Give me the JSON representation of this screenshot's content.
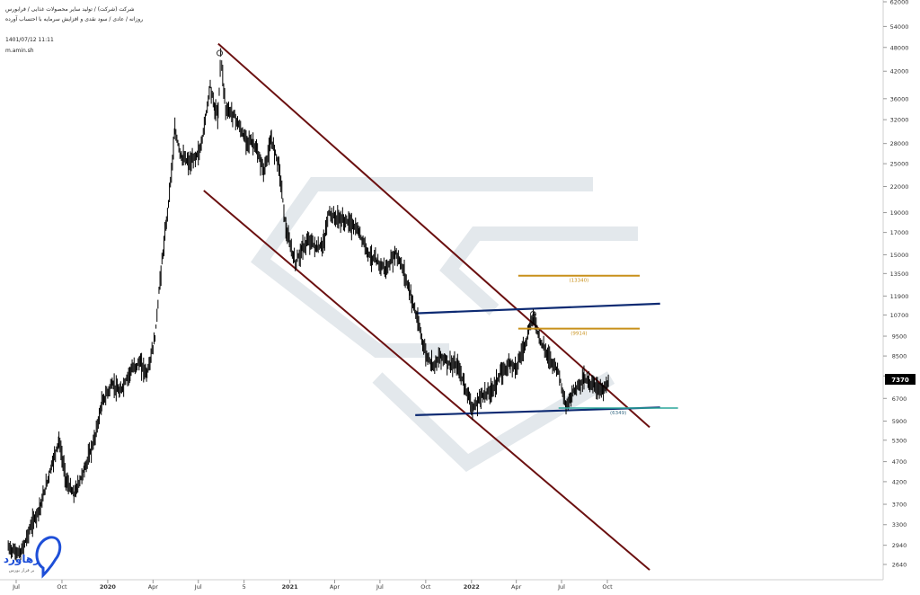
{
  "header": {
    "line1": "شرکت (شرکت) / تولید سایر محصولات غذایی / فرابورس",
    "line2": "روزانه / عادی / سود نقدی و افزایش سرمایه با احتساب آورده",
    "timestamp": "1401/07/12 11:11",
    "author": "m.amin.sh"
  },
  "last_price_label": "7370",
  "logo": {
    "name": "رهاورد",
    "tagline": "بر فراز بورس"
  },
  "colors": {
    "channel": "#6b1010",
    "support_resistance": "#0d2a72",
    "fib_level": "#c8901a",
    "support_level": "#2aa59a",
    "candles": "#000000",
    "last_price_bg": "#000000"
  },
  "chart_data": {
    "type": "line",
    "title": "",
    "y_scale": "log",
    "ylim": [
      2460,
      62000
    ],
    "y_ticks": [
      62000,
      54000,
      48000,
      42000,
      36000,
      32000,
      28000,
      25000,
      22000,
      19000,
      17000,
      15000,
      13500,
      11900,
      10700,
      9500,
      8500,
      7600,
      6700,
      5900,
      5300,
      4700,
      4200,
      3700,
      3300,
      2940,
      2640
    ],
    "x_ticks": [
      {
        "label": "Jul",
        "date": "2019-07-01",
        "bold": false
      },
      {
        "label": "Oct",
        "date": "2019-10-01",
        "bold": false
      },
      {
        "label": "2020",
        "date": "2020-01-01",
        "bold": true
      },
      {
        "label": "Apr",
        "date": "2020-04-01",
        "bold": false
      },
      {
        "label": "Jul",
        "date": "2020-07-01",
        "bold": false
      },
      {
        "label": "5",
        "date": "2020-10-01",
        "bold": false
      },
      {
        "label": "2021",
        "date": "2021-01-01",
        "bold": true
      },
      {
        "label": "Apr",
        "date": "2021-04-01",
        "bold": false
      },
      {
        "label": "Jul",
        "date": "2021-07-01",
        "bold": false
      },
      {
        "label": "Oct",
        "date": "2021-10-01",
        "bold": false
      },
      {
        "label": "2022",
        "date": "2022-01-01",
        "bold": true
      },
      {
        "label": "Apr",
        "date": "2022-04-01",
        "bold": false
      },
      {
        "label": "Jul",
        "date": "2022-07-01",
        "bold": false
      },
      {
        "label": "Oct",
        "date": "2022-10-01",
        "bold": false
      }
    ],
    "price_path": [
      [
        "2019-06-15",
        2900
      ],
      [
        "2019-07-10",
        2800
      ],
      [
        "2019-08-01",
        3300
      ],
      [
        "2019-08-20",
        3700
      ],
      [
        "2019-09-10",
        4600
      ],
      [
        "2019-09-25",
        5300
      ],
      [
        "2019-10-10",
        4200
      ],
      [
        "2019-10-25",
        3900
      ],
      [
        "2019-11-15",
        4500
      ],
      [
        "2019-12-05",
        5300
      ],
      [
        "2019-12-20",
        6500
      ],
      [
        "2020-01-10",
        7300
      ],
      [
        "2020-01-25",
        6900
      ],
      [
        "2020-02-15",
        7800
      ],
      [
        "2020-03-05",
        8200
      ],
      [
        "2020-03-20",
        7700
      ],
      [
        "2020-04-05",
        9400
      ],
      [
        "2020-04-15",
        13000
      ],
      [
        "2020-04-28",
        18000
      ],
      [
        "2020-05-08",
        24000
      ],
      [
        "2020-05-15",
        30000
      ],
      [
        "2020-05-28",
        26000
      ],
      [
        "2020-06-15",
        25000
      ],
      [
        "2020-07-05",
        27000
      ],
      [
        "2020-07-15",
        32000
      ],
      [
        "2020-07-25",
        39000
      ],
      [
        "2020-08-03",
        34000
      ],
      [
        "2020-08-10",
        33000
      ],
      [
        "2020-08-15",
        46500
      ],
      [
        "2020-08-25",
        34000
      ],
      [
        "2020-09-10",
        33000
      ],
      [
        "2020-10-01",
        29000
      ],
      [
        "2020-10-20",
        28000
      ],
      [
        "2020-11-10",
        24000
      ],
      [
        "2020-11-25",
        28500
      ],
      [
        "2020-12-10",
        25000
      ],
      [
        "2020-12-25",
        17000
      ],
      [
        "2021-01-12",
        14300
      ],
      [
        "2021-01-25",
        15500
      ],
      [
        "2021-02-10",
        16300
      ],
      [
        "2021-02-25",
        15500
      ],
      [
        "2021-03-10",
        16000
      ],
      [
        "2021-03-20",
        19000
      ],
      [
        "2021-04-01",
        18500
      ],
      [
        "2021-05-01",
        18000
      ],
      [
        "2021-05-20",
        17000
      ],
      [
        "2021-06-10",
        15000
      ],
      [
        "2021-06-25",
        14400
      ],
      [
        "2021-07-15",
        13800
      ],
      [
        "2021-08-01",
        15200
      ],
      [
        "2021-08-15",
        14000
      ],
      [
        "2021-09-01",
        12000
      ],
      [
        "2021-09-15",
        10300
      ],
      [
        "2021-10-01",
        8600
      ],
      [
        "2021-10-15",
        8100
      ],
      [
        "2021-11-01",
        8500
      ],
      [
        "2021-11-20",
        8100
      ],
      [
        "2021-12-05",
        8000
      ],
      [
        "2021-12-20",
        7100
      ],
      [
        "2022-01-05",
        6300
      ],
      [
        "2022-01-20",
        6800
      ],
      [
        "2022-02-10",
        7000
      ],
      [
        "2022-03-01",
        7700
      ],
      [
        "2022-03-20",
        8200
      ],
      [
        "2022-04-01",
        8000
      ],
      [
        "2022-04-20",
        9200
      ],
      [
        "2022-05-05",
        10700
      ],
      [
        "2022-05-20",
        9200
      ],
      [
        "2022-06-05",
        8500
      ],
      [
        "2022-06-25",
        7800
      ],
      [
        "2022-07-10",
        6350
      ],
      [
        "2022-07-25",
        7000
      ],
      [
        "2022-08-15",
        7500
      ],
      [
        "2022-09-05",
        7200
      ],
      [
        "2022-09-25",
        7000
      ],
      [
        "2022-10-04",
        7370
      ]
    ],
    "channel_lines": [
      {
        "start": [
          "2020-08-10",
          49000
        ],
        "end": [
          "2022-12-25",
          5700
        ]
      },
      {
        "start": [
          "2020-07-12",
          21500
        ],
        "end": [
          "2022-12-25",
          2560
        ]
      }
    ],
    "resistance_line": {
      "start": [
        "2021-09-10",
        10800
      ],
      "end": [
        "2023-01-15",
        11400
      ]
    },
    "support_line": {
      "start": [
        "2021-09-10",
        6100
      ],
      "end": [
        "2023-01-15",
        6370
      ]
    },
    "levels": [
      {
        "label": "(13340)",
        "value": 13340,
        "from": "2022-04-05",
        "to": "2022-12-05",
        "kind": "fib"
      },
      {
        "label": "(9914)",
        "value": 9914,
        "from": "2022-04-05",
        "to": "2022-12-05",
        "kind": "fib"
      },
      {
        "label": "(6349)",
        "value": 6349,
        "from": "2022-06-25",
        "to": "2023-02-20",
        "kind": "support"
      }
    ],
    "markers": [
      {
        "date": "2020-08-13",
        "value": 46500
      },
      {
        "date": "2022-05-05",
        "value": 10750
      }
    ]
  }
}
